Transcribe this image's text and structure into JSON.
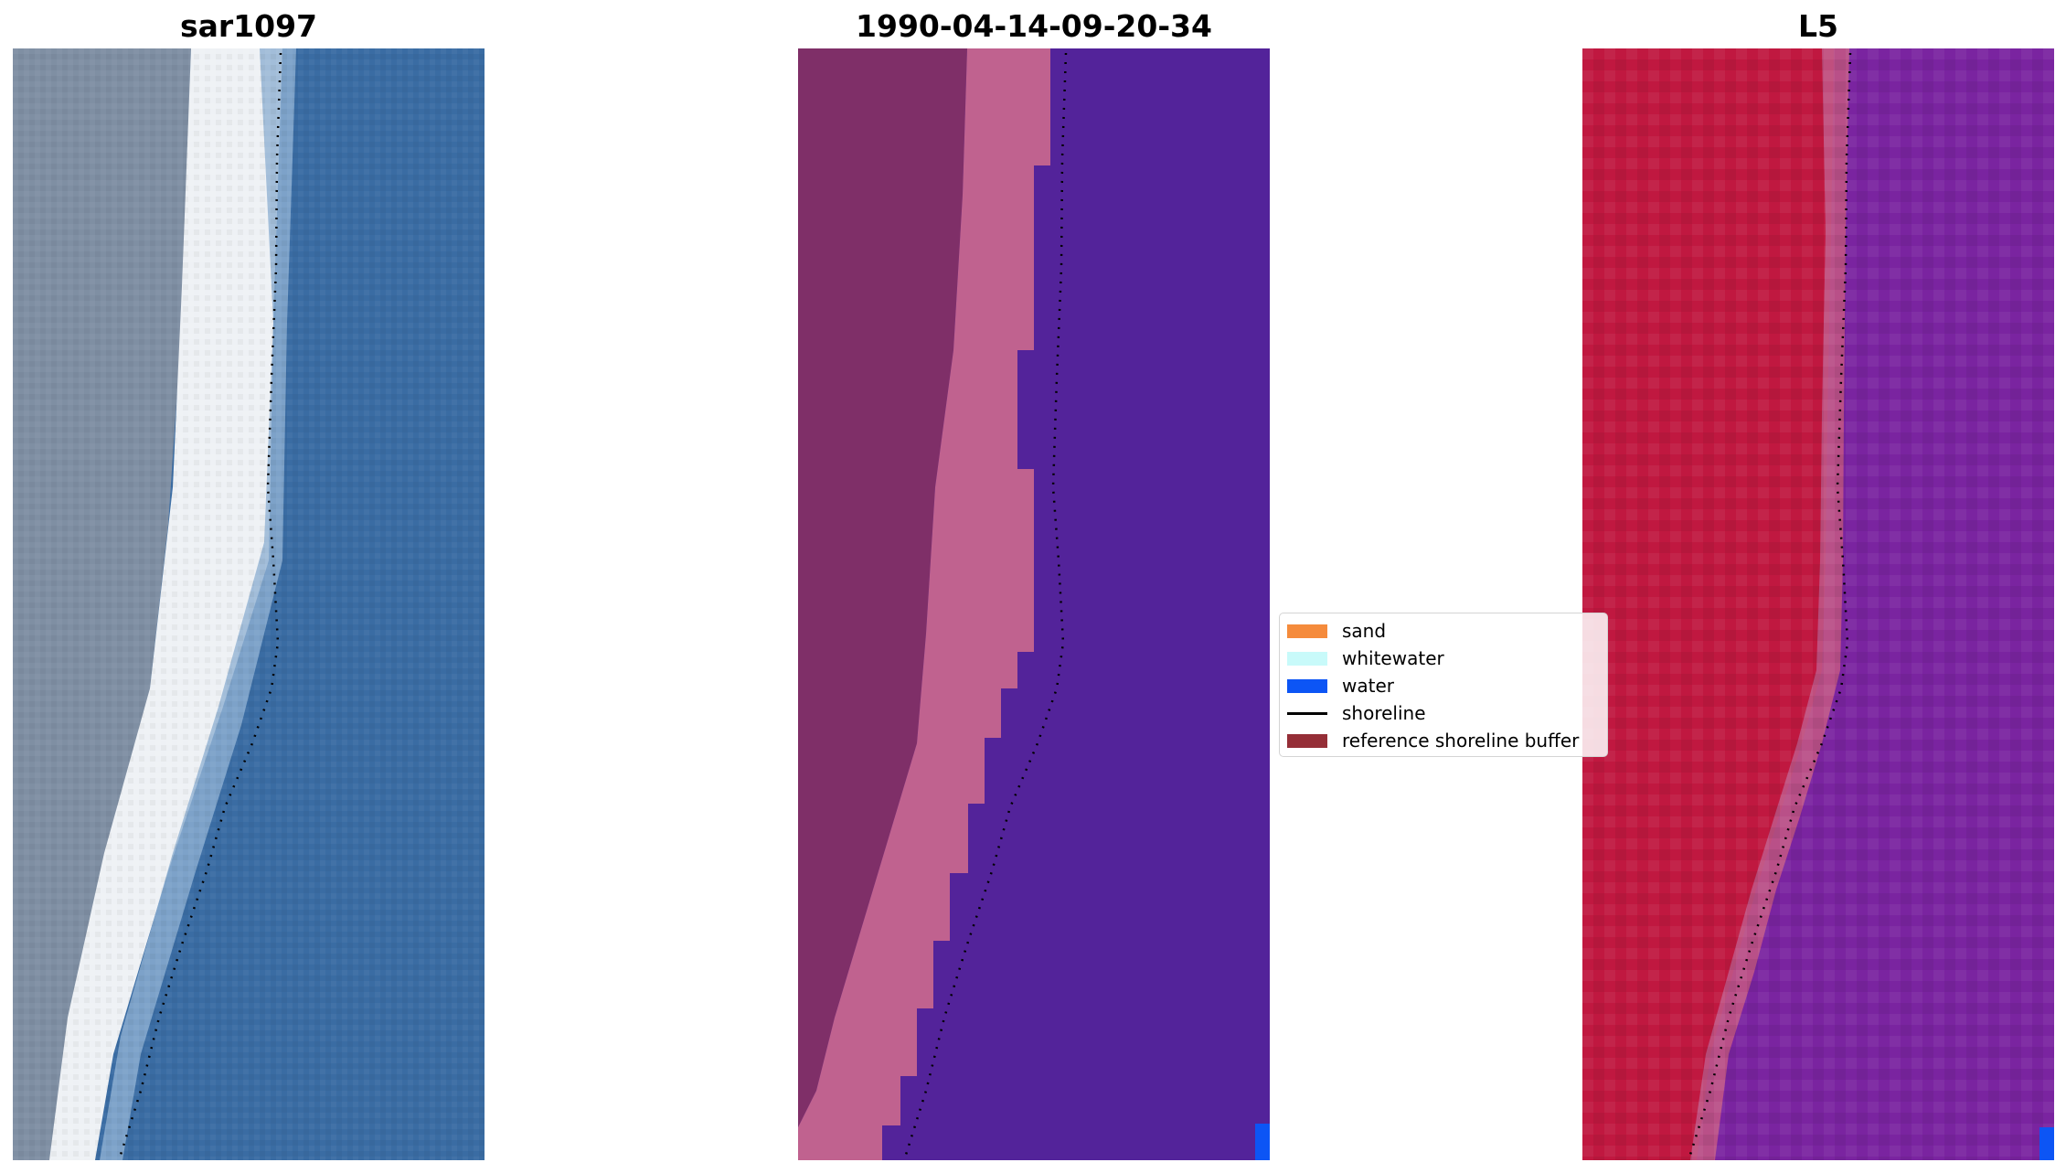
{
  "panels": [
    {
      "title": "sar1097"
    },
    {
      "title": "1990-04-14-09-20-34"
    },
    {
      "title": "L5"
    }
  ],
  "legend": {
    "items": [
      {
        "label": "sand",
        "color": "#f58b3c",
        "kind": "patch"
      },
      {
        "label": "whitewater",
        "color": "#c8fafa",
        "kind": "patch"
      },
      {
        "label": "water",
        "color": "#0c55f5",
        "kind": "patch"
      },
      {
        "label": "shoreline",
        "color": "#000000",
        "kind": "line"
      },
      {
        "label": "reference shoreline buffer",
        "color": "#952e37",
        "kind": "patch"
      }
    ]
  },
  "colors": {
    "sar_land": "#7f8fa3",
    "sar_beach": "#f2f4f6",
    "sar_sea": "#3a6ca3",
    "class_land": "#7f2f68",
    "class_band": "#c0628f",
    "class_sea": "#53239a",
    "class_water_pixel": "#0c55f5",
    "index_land": "#c01840",
    "index_sea": "#7a24a0",
    "shoreline": "#000000"
  }
}
